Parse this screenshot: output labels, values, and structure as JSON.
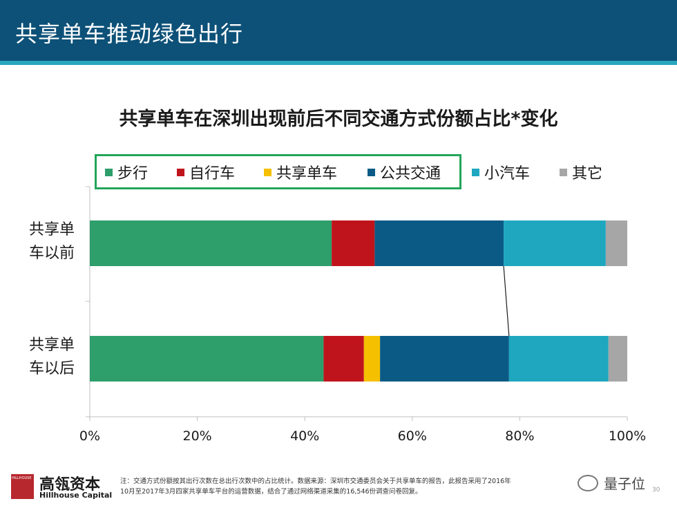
{
  "slide": {
    "title": "共享单车推动绿色出行",
    "page_number": "30"
  },
  "chart_data": {
    "type": "bar",
    "orientation": "horizontal",
    "stacked": true,
    "title": "共享单车在深圳出现前后不同交通方式份额占比*变化",
    "categories": [
      "共享单车以前",
      "共享单车以后"
    ],
    "category_labels": [
      {
        "line1": "共享单",
        "line2": "车以前"
      },
      {
        "line1": "共享单",
        "line2": "车以后"
      }
    ],
    "series": [
      {
        "name": "步行",
        "color": "#2e9e6b",
        "values": [
          45,
          43.5
        ]
      },
      {
        "name": "自行车",
        "color": "#c0141c",
        "values": [
          8,
          7.5
        ]
      },
      {
        "name": "共享单车",
        "color": "#f5c000",
        "values": [
          0,
          3
        ]
      },
      {
        "name": "公共交通",
        "color": "#0b5a85",
        "values": [
          24,
          24
        ]
      },
      {
        "name": "小汽车",
        "color": "#1ea7bf",
        "values": [
          19,
          18.5
        ]
      },
      {
        "name": "其它",
        "color": "#a6a6a6",
        "values": [
          4,
          3.5
        ]
      }
    ],
    "xlim": [
      0,
      100
    ],
    "x_ticks": [
      "0%",
      "20%",
      "40%",
      "60%",
      "80%",
      "100%"
    ],
    "x_tick_values": [
      0,
      20,
      40,
      60,
      80,
      100
    ],
    "grid": false,
    "legend_position": "top"
  },
  "footer": {
    "logo_small": "HILLHOUSE",
    "brand_cn": "高瓴资本",
    "brand_en": "Hillhouse Capital",
    "note_line1": "注：交通方式份额按其出行次数在总出行次数中的占比统计。数据来源：深圳市交通委员会关于共享单车的报告，此报告采用了2016年",
    "note_line2": "10月至2017年3月四家共享单车平台的运营数据，结合了通过网络渠道采集的16,546份调查问卷回复。",
    "watermark": "量子位"
  }
}
